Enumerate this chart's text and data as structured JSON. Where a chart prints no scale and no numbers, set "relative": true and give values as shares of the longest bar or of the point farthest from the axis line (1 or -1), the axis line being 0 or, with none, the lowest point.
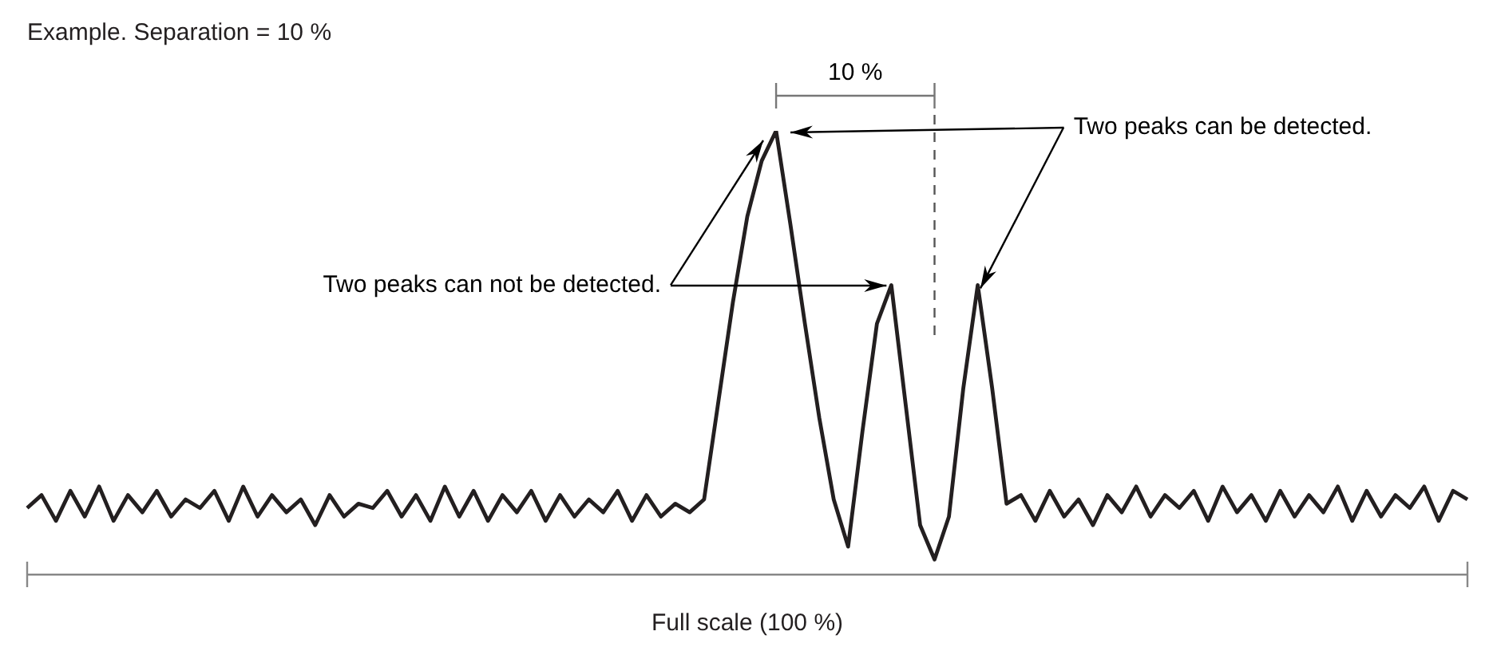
{
  "chart_data": {
    "type": "line",
    "relative": true,
    "title": "Example. Separation = 10 %",
    "xlabel": "Full scale (100 %)",
    "categories": [
      null,
      null,
      null,
      null,
      null,
      null,
      null,
      null,
      null,
      null,
      null,
      null,
      null,
      null,
      null,
      null,
      null,
      null,
      null,
      null,
      null,
      null,
      null,
      null,
      null,
      null,
      null,
      null,
      null,
      null,
      null,
      null,
      null,
      null,
      null,
      null,
      null,
      null,
      null,
      null,
      null,
      null,
      null,
      null,
      null,
      null,
      null,
      null,
      null,
      null,
      null,
      null,
      null,
      null,
      null,
      null,
      null,
      null,
      null,
      null,
      null,
      null,
      null,
      null,
      null,
      null,
      null,
      null,
      null,
      null,
      null,
      null,
      null,
      null,
      null,
      null,
      null,
      null,
      null,
      null,
      null,
      null,
      null,
      null,
      null,
      null,
      null,
      null,
      null,
      null,
      null,
      null,
      null,
      null,
      null,
      null,
      null,
      null,
      null,
      null,
      null
    ],
    "annotations": [
      "10 %",
      "Two peaks can be detected.",
      "Two peaks can not be detected."
    ],
    "series": [
      {
        "color": "#231f20",
        "line_style": "solid",
        "values": [
          0.12,
          0.15,
          0.09,
          0.16,
          0.1,
          0.17,
          0.09,
          0.15,
          0.11,
          0.16,
          0.1,
          0.14,
          0.12,
          0.16,
          0.09,
          0.17,
          0.1,
          0.15,
          0.11,
          0.14,
          0.08,
          0.15,
          0.1,
          0.13,
          0.12,
          0.16,
          0.1,
          0.15,
          0.09,
          0.17,
          0.1,
          0.16,
          0.09,
          0.15,
          0.11,
          0.16,
          0.09,
          0.15,
          0.1,
          0.14,
          0.11,
          0.16,
          0.09,
          0.15,
          0.1,
          0.13,
          0.11,
          0.14,
          0.37,
          0.6,
          0.8,
          0.93,
          1.0,
          0.78,
          0.55,
          0.33,
          0.14,
          0.03,
          0.3,
          0.55,
          0.64,
          0.36,
          0.08,
          0,
          0.1,
          0.4,
          0.64,
          0.4,
          0.13,
          0.15,
          0.09,
          0.16,
          0.1,
          0.14,
          0.08,
          0.15,
          0.11,
          0.17,
          0.1,
          0.15,
          0.12,
          0.16,
          0.09,
          0.17,
          0.11,
          0.15,
          0.09,
          0.16,
          0.1,
          0.15,
          0.11,
          0.17,
          0.09,
          0.16,
          0.1,
          0.15,
          0.12,
          0.17,
          0.09,
          0.16,
          0.14
        ]
      }
    ]
  }
}
